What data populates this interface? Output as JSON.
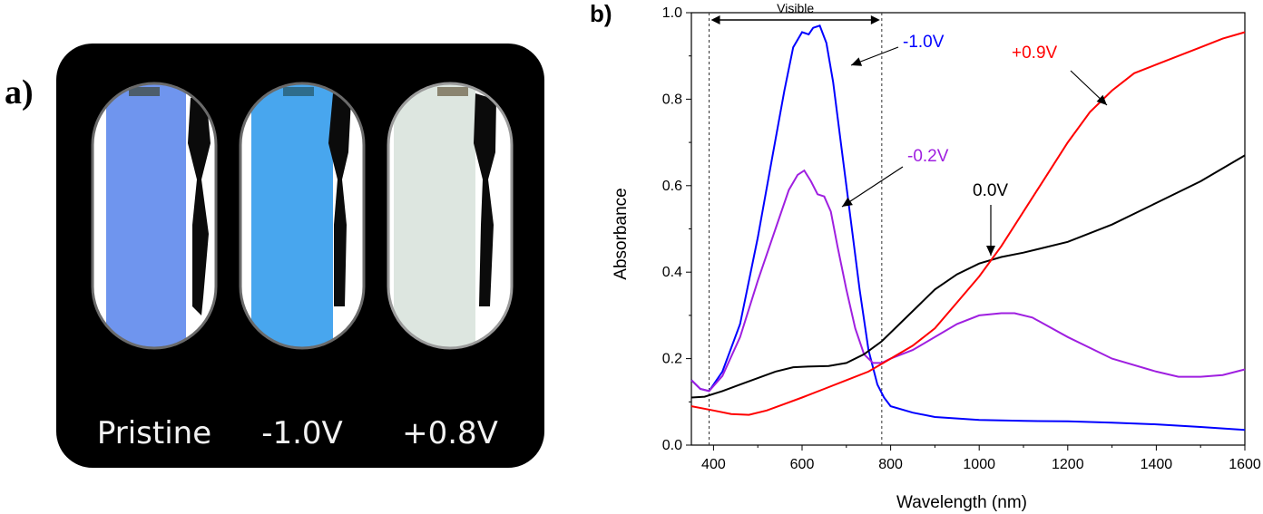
{
  "panel_a": {
    "label": "a)",
    "captions": [
      "Pristine",
      "-1.0V",
      "+0.8V"
    ],
    "cell_colors": [
      "#6f95ee",
      "#48a6ee",
      "#dde6e0"
    ]
  },
  "panel_b": {
    "label": "b)"
  },
  "chart_data": {
    "type": "line",
    "title": "",
    "xlabel": "Wavelength (nm)",
    "ylabel": "Absorbance",
    "xlim": [
      350,
      1600
    ],
    "ylim": [
      0,
      1.0
    ],
    "x_ticks": [
      400,
      600,
      800,
      1000,
      1200,
      1400,
      1600
    ],
    "y_ticks": [
      0.0,
      0.2,
      0.4,
      0.6,
      0.8,
      1.0
    ],
    "x_tick_labels": [
      "400",
      "600",
      "800",
      "1000",
      "1200",
      "1400",
      "1600"
    ],
    "y_tick_labels": [
      "0.0",
      "0.2",
      "0.4",
      "0.6",
      "0.8",
      "1.0"
    ],
    "visible_region": {
      "label": "Visible",
      "x_start": 390,
      "x_end": 780
    },
    "grid": false,
    "series": [
      {
        "name": "-1.0V",
        "color": "#0000ff",
        "x": [
          350,
          370,
          390,
          420,
          460,
          500,
          530,
          560,
          580,
          600,
          615,
          625,
          640,
          655,
          670,
          690,
          710,
          730,
          750,
          770,
          785,
          800,
          850,
          900,
          1000,
          1100,
          1200,
          1300,
          1400,
          1500,
          1600
        ],
        "y": [
          0.15,
          0.13,
          0.125,
          0.17,
          0.28,
          0.48,
          0.65,
          0.82,
          0.92,
          0.955,
          0.95,
          0.965,
          0.97,
          0.93,
          0.84,
          0.68,
          0.52,
          0.36,
          0.22,
          0.14,
          0.11,
          0.09,
          0.075,
          0.065,
          0.058,
          0.056,
          0.055,
          0.052,
          0.048,
          0.042,
          0.035
        ]
      },
      {
        "name": "-0.2V",
        "color": "#9f1fe0",
        "x": [
          350,
          370,
          390,
          420,
          460,
          500,
          540,
          570,
          590,
          605,
          620,
          635,
          650,
          665,
          680,
          700,
          720,
          740,
          760,
          780,
          800,
          850,
          900,
          950,
          1000,
          1050,
          1080,
          1120,
          1200,
          1300,
          1400,
          1450,
          1500,
          1550,
          1600
        ],
        "y": [
          0.15,
          0.13,
          0.125,
          0.16,
          0.25,
          0.38,
          0.5,
          0.59,
          0.625,
          0.635,
          0.61,
          0.58,
          0.575,
          0.54,
          0.46,
          0.36,
          0.27,
          0.21,
          0.19,
          0.19,
          0.2,
          0.22,
          0.25,
          0.28,
          0.3,
          0.305,
          0.305,
          0.295,
          0.25,
          0.2,
          0.17,
          0.158,
          0.158,
          0.162,
          0.175
        ]
      },
      {
        "name": "0.0V",
        "color": "#000000",
        "x": [
          350,
          380,
          420,
          460,
          500,
          540,
          580,
          620,
          660,
          700,
          740,
          780,
          820,
          860,
          900,
          950,
          1000,
          1050,
          1100,
          1200,
          1300,
          1400,
          1500,
          1600
        ],
        "y": [
          0.11,
          0.112,
          0.125,
          0.14,
          0.155,
          0.17,
          0.18,
          0.182,
          0.183,
          0.19,
          0.21,
          0.24,
          0.28,
          0.32,
          0.36,
          0.395,
          0.42,
          0.435,
          0.445,
          0.47,
          0.51,
          0.56,
          0.61,
          0.67
        ]
      },
      {
        "name": "+0.9V",
        "color": "#ff0000",
        "x": [
          350,
          400,
          440,
          480,
          520,
          560,
          600,
          650,
          700,
          750,
          800,
          850,
          900,
          950,
          1000,
          1050,
          1100,
          1150,
          1200,
          1250,
          1300,
          1350,
          1400,
          1450,
          1500,
          1550,
          1600
        ],
        "y": [
          0.09,
          0.08,
          0.072,
          0.07,
          0.08,
          0.095,
          0.11,
          0.13,
          0.15,
          0.17,
          0.2,
          0.23,
          0.27,
          0.33,
          0.39,
          0.46,
          0.54,
          0.62,
          0.7,
          0.77,
          0.82,
          0.86,
          0.88,
          0.9,
          0.92,
          0.94,
          0.955
        ]
      }
    ],
    "annotations": [
      {
        "text": "-1.0V",
        "color": "#0000ff"
      },
      {
        "text": "+0.9V",
        "color": "#ff0000"
      },
      {
        "text": "-0.2V",
        "color": "#9f1fe0"
      },
      {
        "text": "0.0V",
        "color": "#000000"
      }
    ]
  }
}
